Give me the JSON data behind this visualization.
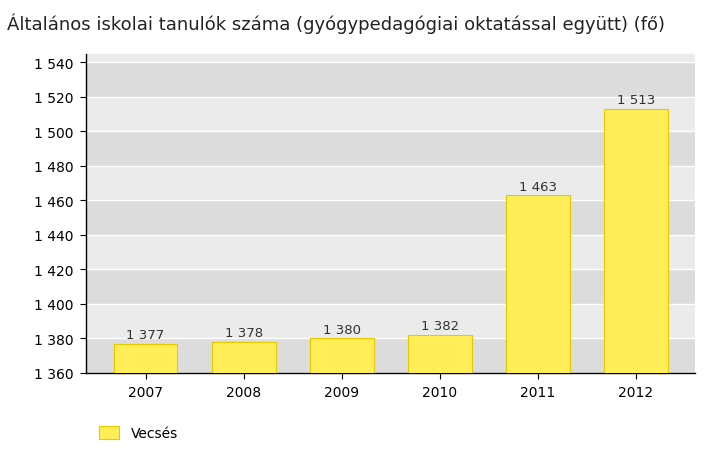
{
  "title": "Általános iskolai tanulók száma (gyógypedagógiai oktatással együtt) (fő)",
  "categories": [
    "2007",
    "2008",
    "2009",
    "2010",
    "2011",
    "2012"
  ],
  "values": [
    1377,
    1378,
    1380,
    1382,
    1463,
    1513
  ],
  "bar_color": "#FFEE58",
  "bar_edge_color": "#E8C800",
  "plot_bg_color": "#EBEBEB",
  "band_color_light": "#EBEBEB",
  "band_color_dark": "#DCDCDC",
  "ylim": [
    1360,
    1545
  ],
  "yticks": [
    1360,
    1380,
    1400,
    1420,
    1440,
    1460,
    1480,
    1500,
    1520,
    1540
  ],
  "legend_label": "Vecsés",
  "label_values": [
    "1 377",
    "1 378",
    "1 380",
    "1 382",
    "1 463",
    "1 513"
  ],
  "title_fontsize": 13,
  "tick_fontsize": 10,
  "label_fontsize": 9.5
}
